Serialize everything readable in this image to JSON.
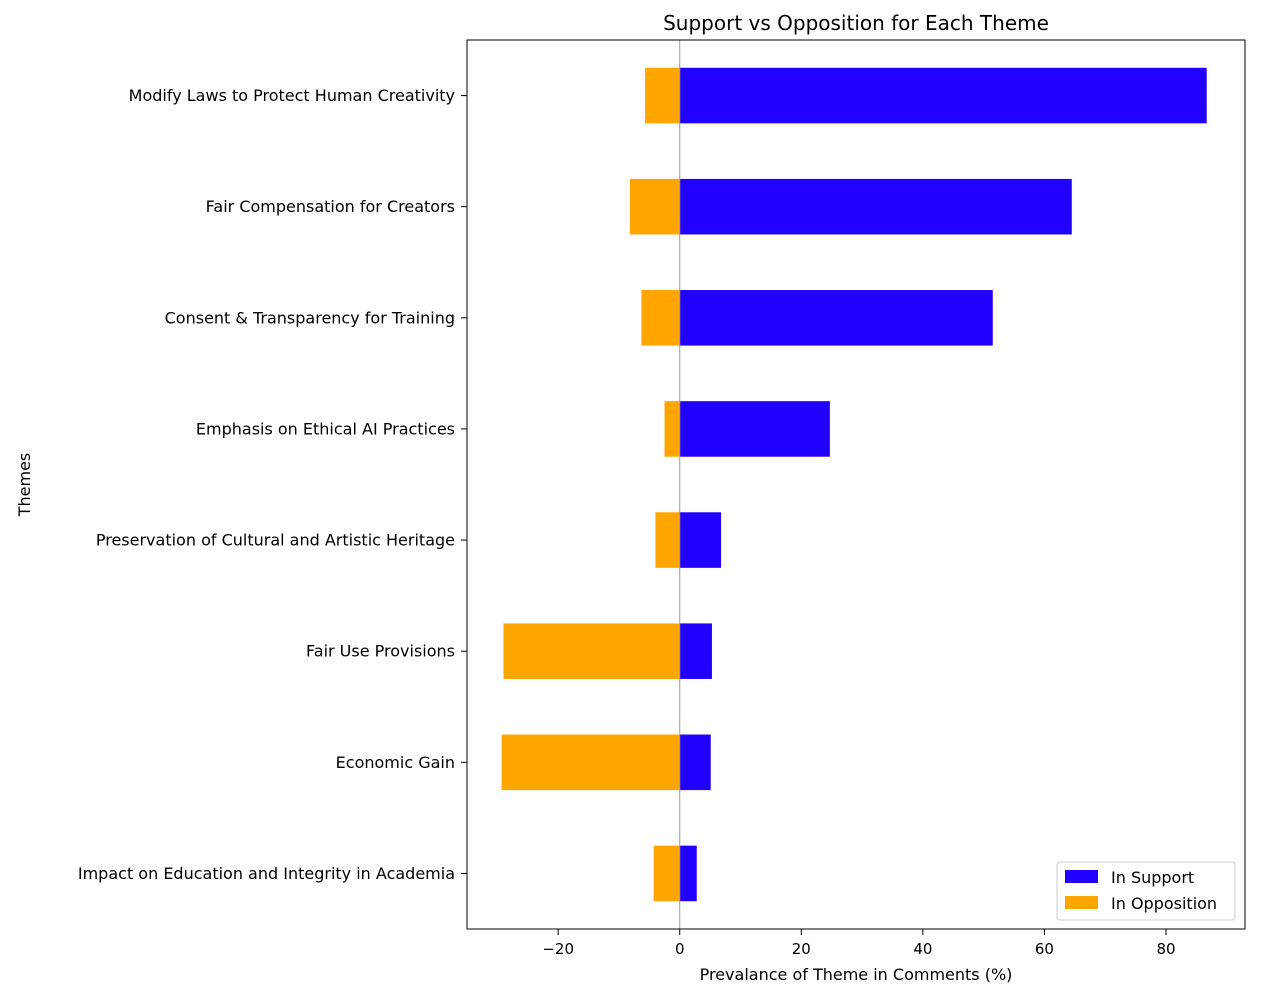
{
  "chart_data": {
    "type": "bar",
    "orientation": "horizontal",
    "stacking": "diverging",
    "title": "Support vs Opposition for Each Theme",
    "xlabel": "Prevalance of Theme in Comments (%)",
    "ylabel": "Themes",
    "xlim": [
      -35,
      93
    ],
    "xticks": [
      -20,
      0,
      20,
      40,
      60,
      80
    ],
    "xtick_labels": [
      "−20",
      "0",
      "20",
      "40",
      "60",
      "80"
    ],
    "grid": false,
    "legend_position": "lower-right",
    "categories": [
      "Modify Laws to Protect Human Creativity",
      "Fair Compensation for Creators",
      "Consent & Transparency for Training",
      "Emphasis on Ethical AI Practices",
      "Preservation of Cultural and Artistic Heritage",
      "Fair Use Provisions",
      "Economic Gain",
      "Impact on Education and Integrity in Academia"
    ],
    "series": [
      {
        "name": "In Support",
        "color": "#2200ff",
        "values": [
          86.7,
          64.5,
          51.5,
          24.7,
          6.8,
          5.3,
          5.1,
          2.8
        ]
      },
      {
        "name": "In Opposition",
        "color": "#ffa500",
        "values": [
          -5.7,
          -8.2,
          -6.3,
          -2.5,
          -4.0,
          -29.0,
          -29.3,
          -4.3
        ]
      }
    ]
  }
}
